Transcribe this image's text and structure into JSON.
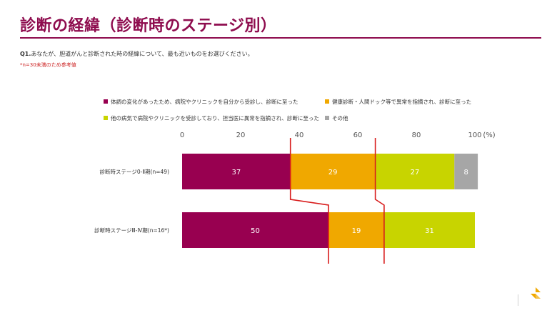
{
  "page": {
    "title": "診断の経緯（診断時のステージ別）",
    "question_prefix": "Q1.",
    "question_text": "あなたが、胆道がんと診断された時の経緯について、最も近いものをお選びください。",
    "note": "*n=30未満のため参考値"
  },
  "chart_data": {
    "type": "bar",
    "orientation": "horizontal",
    "stacked": true,
    "categories": [
      "診断時ステージ0-Ⅱ期(n=49)",
      "診断時ステージⅢ-Ⅳ期(n=16*)"
    ],
    "series": [
      {
        "name": "体調の変化があったため、病院やクリニックを自分から受診し、診断に至った",
        "color": "#980050",
        "values": [
          37,
          50
        ]
      },
      {
        "name": "健康診断・人間ドック等で異常を指摘され、診断に至った",
        "color": "#f0a800",
        "values": [
          29,
          19
        ]
      },
      {
        "name": "他の病気で病院やクリニックを受診しており、担当医に異常を指摘され、診断に至った",
        "color": "#c8d400",
        "values": [
          27,
          31
        ]
      },
      {
        "name": "その他",
        "color": "#a6a6a6",
        "values": [
          8,
          0
        ]
      }
    ],
    "xlim": [
      0,
      100
    ],
    "xticks": [
      0,
      20,
      40,
      60,
      80,
      100
    ],
    "xunit": "(%)",
    "legend_position": "top",
    "grid": false,
    "annotation": "red connector lines between bars at cumulative boundaries"
  }
}
